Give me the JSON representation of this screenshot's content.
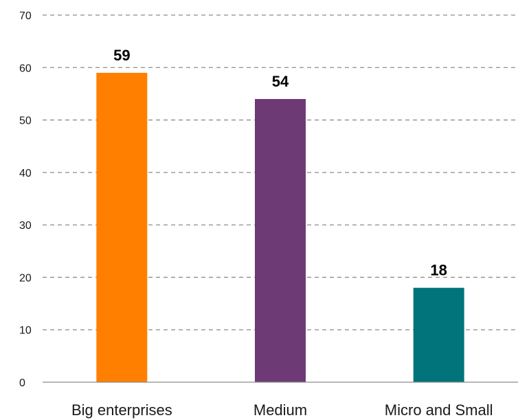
{
  "chart_data": {
    "type": "bar",
    "title": "",
    "xlabel": "",
    "ylabel": "",
    "categories": [
      "Big enterprises",
      "Medium",
      "Micro and Small"
    ],
    "values": [
      59,
      54,
      18
    ],
    "data_labels": [
      "59",
      "54",
      "18"
    ],
    "bar_colors": [
      "#ff7f00",
      "#6d3a75",
      "#00747a"
    ],
    "ylim": [
      0,
      70
    ],
    "yticks": [
      0,
      10,
      20,
      30,
      40,
      50,
      60,
      70
    ],
    "grid": true,
    "legend": "none"
  }
}
